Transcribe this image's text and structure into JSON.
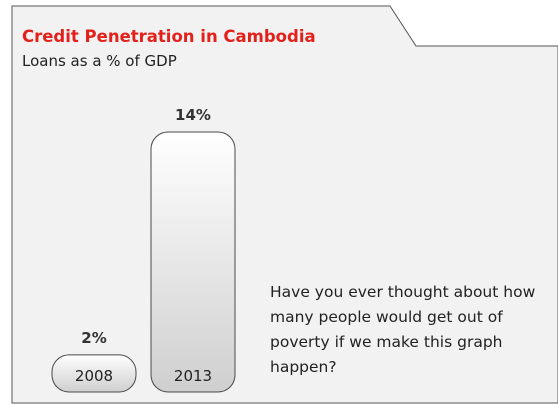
{
  "chart_data": {
    "type": "bar",
    "title": "Credit Penetration in Cambodia",
    "subtitle": "Loans as a % of GDP",
    "categories": [
      "2008",
      "2013"
    ],
    "values": [
      2,
      14
    ],
    "value_labels": [
      "2%",
      "14%"
    ],
    "ylim": [
      0,
      14
    ],
    "grid": false,
    "legend": "none",
    "colors": {
      "title": "#e3211b",
      "bar_fill_top": "#ffffff",
      "bar_fill_bottom": "#cfcfcf",
      "bar_stroke": "#4a4a4a",
      "panel_fill": "#f2f2f2"
    }
  },
  "note": {
    "text": "Have you ever thought about how many people would get out of poverty if we make this graph happen?"
  }
}
